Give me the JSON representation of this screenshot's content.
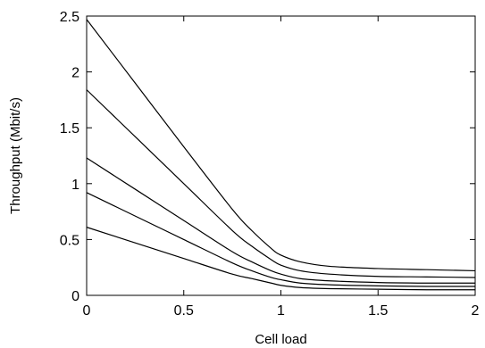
{
  "chart_data": {
    "type": "line",
    "title": "",
    "xlabel": "Cell load",
    "ylabel": "Throughput (Mbit/s)",
    "xlim": [
      0,
      2
    ],
    "ylim": [
      0,
      2.5
    ],
    "xticks": [
      0,
      0.5,
      1,
      1.5,
      2
    ],
    "xtick_labels": [
      "0",
      "0.5",
      "1",
      "1.5",
      "2"
    ],
    "yticks": [
      0,
      0.5,
      1,
      1.5,
      2,
      2.5
    ],
    "ytick_labels": [
      "0",
      "0.5",
      "1",
      "1.5",
      "2",
      "2.5"
    ],
    "grid": false,
    "legend": false,
    "line_color": "#000000",
    "series": [
      {
        "x": [
          0,
          0.25,
          0.5,
          0.75,
          0.85,
          0.95,
          1.0,
          1.1,
          1.25,
          1.5,
          1.75,
          2.0
        ],
        "y": [
          2.47,
          1.9,
          1.33,
          0.77,
          0.58,
          0.42,
          0.36,
          0.3,
          0.26,
          0.24,
          0.23,
          0.22
        ]
      },
      {
        "x": [
          0,
          0.25,
          0.5,
          0.75,
          0.85,
          0.95,
          1.0,
          1.1,
          1.25,
          1.5,
          1.75,
          2.0
        ],
        "y": [
          1.84,
          1.42,
          1.0,
          0.58,
          0.44,
          0.32,
          0.27,
          0.22,
          0.19,
          0.17,
          0.165,
          0.16
        ]
      },
      {
        "x": [
          0,
          0.25,
          0.5,
          0.75,
          0.85,
          0.95,
          1.0,
          1.1,
          1.25,
          1.5,
          1.75,
          2.0
        ],
        "y": [
          1.23,
          0.95,
          0.67,
          0.39,
          0.3,
          0.22,
          0.19,
          0.15,
          0.13,
          0.115,
          0.11,
          0.11
        ]
      },
      {
        "x": [
          0,
          0.25,
          0.5,
          0.75,
          0.85,
          0.95,
          1.0,
          1.1,
          1.25,
          1.5,
          1.75,
          2.0
        ],
        "y": [
          0.92,
          0.71,
          0.5,
          0.29,
          0.22,
          0.16,
          0.14,
          0.11,
          0.095,
          0.085,
          0.08,
          0.08
        ]
      },
      {
        "x": [
          0,
          0.25,
          0.5,
          0.75,
          0.85,
          0.95,
          1.0,
          1.1,
          1.25,
          1.5,
          1.75,
          2.0
        ],
        "y": [
          0.61,
          0.47,
          0.33,
          0.19,
          0.15,
          0.11,
          0.09,
          0.07,
          0.06,
          0.055,
          0.05,
          0.05
        ]
      }
    ]
  }
}
